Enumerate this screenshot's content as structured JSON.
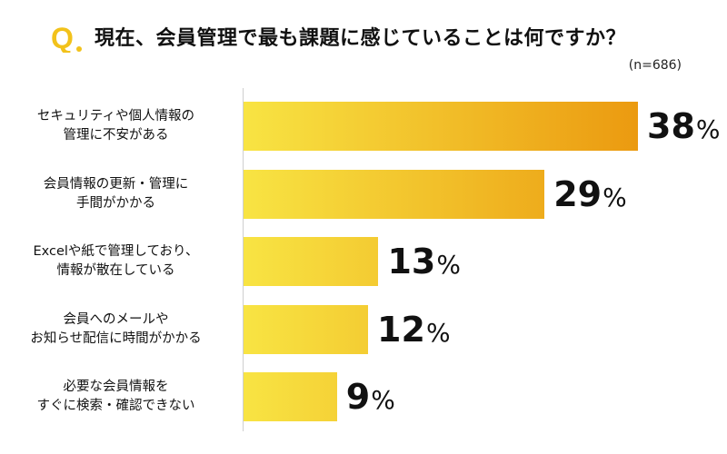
{
  "chart_data": {
    "type": "bar",
    "orientation": "horizontal",
    "title_prefix": "Q.",
    "title": "現在、会員管理で最も課題に感じていることは何ですか？",
    "note": "(n=686)",
    "unit": "%",
    "categories": [
      [
        "セキュリティや個人情報の",
        "管理に不安がある"
      ],
      [
        "会員情報の更新・管理に",
        "手間がかかる"
      ],
      [
        "Excelや紙で管理しており、",
        "情報が散在している"
      ],
      [
        "会員へのメールや",
        "お知らせ配信に時間がかかる"
      ],
      [
        "必要な会員情報を",
        "すぐに検索・確認できない"
      ]
    ],
    "values": [
      38,
      29,
      13,
      12,
      9
    ],
    "value_labels": [
      "38",
      "29",
      "13",
      "12",
      "9"
    ],
    "xlim": [
      0,
      38
    ],
    "colors": {
      "bar_start": "#f8e443",
      "bar_end": "#eb9a10",
      "q_mark": "#f2c21b"
    }
  }
}
